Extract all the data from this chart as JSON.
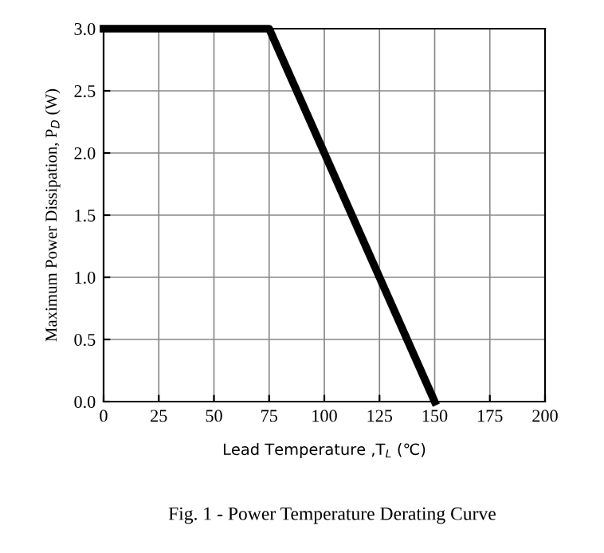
{
  "chart_data": {
    "type": "line",
    "xlabel": "Lead Temperature ,T$_{L}$ (℃)",
    "ylabel": "Maximum Power Dissipation, P$_{D}$ (W)",
    "x": [
      0,
      75,
      150
    ],
    "series": [
      {
        "color": "#000000",
        "values": [
          3.0,
          3.0,
          0.0
        ]
      }
    ],
    "xlim": [
      0,
      200
    ],
    "xticks": [
      0,
      25,
      50,
      75,
      100,
      125,
      150,
      175,
      200
    ],
    "ylim": [
      0,
      3.0
    ],
    "yticks": [
      {
        "value": 0,
        "label": "0.0"
      },
      {
        "value": 0.5,
        "label": "0.5"
      },
      {
        "value": 1.0,
        "label": "1.0"
      },
      {
        "value": 1.5,
        "label": "1.5"
      },
      {
        "value": 2.0,
        "label": "2.0"
      },
      {
        "value": 2.5,
        "label": "2.5"
      },
      {
        "value": 3.0,
        "label": "3.0"
      }
    ],
    "grid": true,
    "legend": false,
    "marker": "none",
    "line_style": "solid",
    "annotations": [
      "Fig. 1 - Power Temperature Derating Curve"
    ]
  }
}
